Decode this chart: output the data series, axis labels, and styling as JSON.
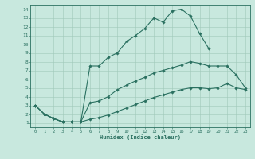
{
  "xlabel": "Humidex (Indice chaleur)",
  "xlim": [
    -0.5,
    23.5
  ],
  "ylim": [
    0.5,
    14.5
  ],
  "xticks": [
    0,
    1,
    2,
    3,
    4,
    5,
    6,
    7,
    8,
    9,
    10,
    11,
    12,
    13,
    14,
    15,
    16,
    17,
    18,
    19,
    20,
    21,
    22,
    23
  ],
  "yticks": [
    1,
    2,
    3,
    4,
    5,
    6,
    7,
    8,
    9,
    10,
    11,
    12,
    13,
    14
  ],
  "bg_color": "#c8e8de",
  "grid_color": "#a0c8ba",
  "line_color": "#2a7060",
  "curves": [
    {
      "x": [
        0,
        1,
        2,
        3,
        4,
        5,
        6,
        7,
        8,
        9,
        10,
        11,
        12,
        13,
        14,
        15,
        16,
        17,
        18,
        19
      ],
      "y": [
        3,
        2,
        1.5,
        1.1,
        1.1,
        1.1,
        7.5,
        7.5,
        8.5,
        9.0,
        10.3,
        11.0,
        11.8,
        13.0,
        12.5,
        13.8,
        14.0,
        13.2,
        11.2,
        9.5
      ]
    },
    {
      "x": [
        0,
        1,
        2,
        3,
        4,
        5,
        6,
        7,
        8,
        9,
        10,
        11,
        12,
        13,
        14,
        15,
        16,
        17,
        18,
        19,
        20,
        21,
        22,
        23
      ],
      "y": [
        3,
        2,
        1.5,
        1.1,
        1.1,
        1.1,
        3.3,
        3.5,
        4.0,
        4.8,
        5.3,
        5.8,
        6.2,
        6.7,
        7.0,
        7.3,
        7.6,
        8.0,
        7.8,
        7.5,
        7.5,
        7.5,
        6.5,
        5.0
      ]
    },
    {
      "x": [
        0,
        1,
        2,
        3,
        4,
        5,
        6,
        7,
        8,
        9,
        10,
        11,
        12,
        13,
        14,
        15,
        16,
        17,
        18,
        19,
        20,
        21,
        22,
        23
      ],
      "y": [
        3,
        2,
        1.5,
        1.1,
        1.1,
        1.1,
        1.4,
        1.6,
        1.9,
        2.3,
        2.7,
        3.1,
        3.5,
        3.9,
        4.2,
        4.5,
        4.8,
        5.0,
        5.0,
        4.9,
        5.0,
        5.5,
        5.0,
        4.8
      ]
    }
  ]
}
